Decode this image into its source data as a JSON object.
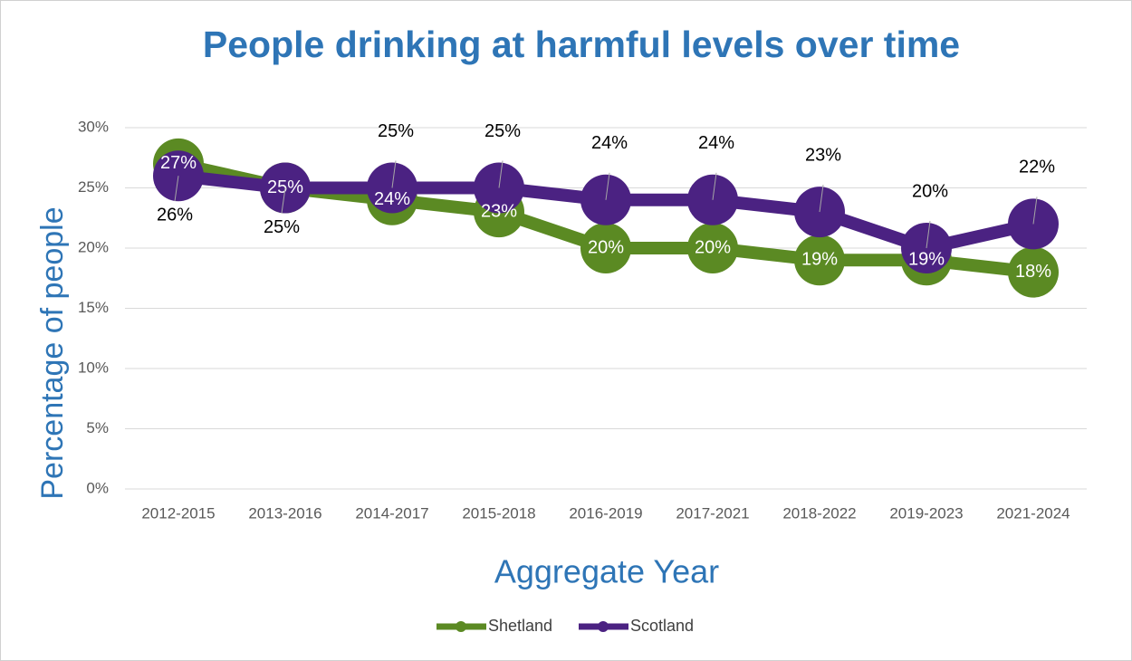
{
  "chart_data": {
    "type": "line",
    "title": "People drinking at harmful levels over time",
    "x_label": "Aggregate Year",
    "y_label": "Percentage of people",
    "categories": [
      "2012-2015",
      "2013-2016",
      "2014-2017",
      "2015-2018",
      "2016-2019",
      "2017-2021",
      "2018-2022",
      "2019-2023",
      "2021-2024"
    ],
    "series": [
      {
        "name": "Shetland",
        "color": "#5b8a23",
        "values": [
          27,
          25,
          24,
          23,
          20,
          20,
          19,
          19,
          18
        ],
        "value_labels": [
          "27%",
          "25%",
          "24%",
          "23%",
          "20%",
          "20%",
          "19%",
          "19%",
          "18%"
        ]
      },
      {
        "name": "Scotland",
        "color": "#4b2282",
        "values": [
          26,
          25,
          25,
          25,
          24,
          24,
          23,
          20,
          22
        ],
        "value_labels": [
          "26%",
          "25%",
          "25%",
          "25%",
          "24%",
          "24%",
          "23%",
          "20%",
          "22%"
        ]
      }
    ],
    "ylim": [
      0,
      30
    ],
    "yticks": [
      {
        "value": 0,
        "label": "0%"
      },
      {
        "value": 5,
        "label": "5%"
      },
      {
        "value": 10,
        "label": "10%"
      },
      {
        "value": 15,
        "label": "15%"
      },
      {
        "value": 20,
        "label": "20%"
      },
      {
        "value": 25,
        "label": "25%"
      },
      {
        "value": 30,
        "label": "30%"
      }
    ],
    "grid": true,
    "legend": "bottom"
  }
}
